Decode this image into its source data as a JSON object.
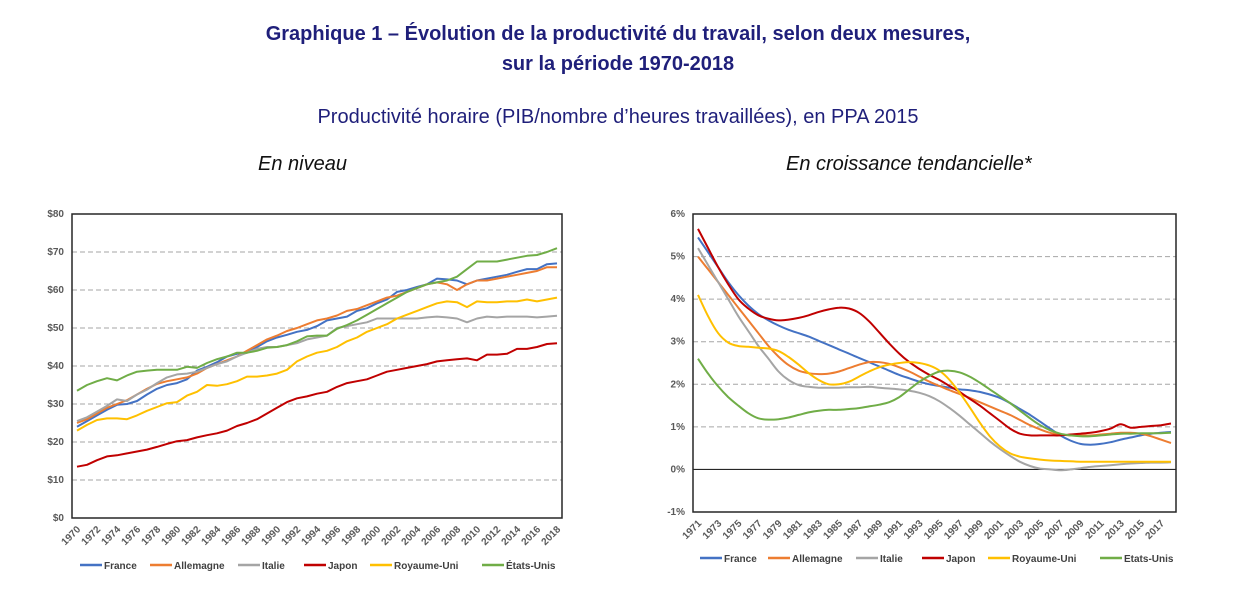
{
  "header": {
    "title_line1": "Graphique 1 – Évolution de la productivité du travail, selon deux mesures,",
    "title_line2": "sur la période 1970-2018",
    "subtitle": "Productivité horaire (PIB/nombre d’heures travaillées), en PPA 2015"
  },
  "colors": {
    "France": "#4472c4",
    "Allemagne": "#ed7d31",
    "Italie": "#a5a5a5",
    "Japon": "#c00000",
    "Royaume-Uni": "#ffc000",
    "États-Unis": "#70ad47"
  },
  "chart_data": [
    {
      "type": "line",
      "title": "En niveau",
      "xlabel": "",
      "ylabel": "",
      "ylim": [
        0,
        80
      ],
      "y_ticks": [
        "$0",
        "$10",
        "$20",
        "$30",
        "$40",
        "$50",
        "$60",
        "$70",
        "$80"
      ],
      "y_tick_values": [
        0,
        10,
        20,
        30,
        40,
        50,
        60,
        70,
        80
      ],
      "x_tick_labels": [
        "1970",
        "1972",
        "1974",
        "1976",
        "1978",
        "1980",
        "1982",
        "1984",
        "1986",
        "1988",
        "1990",
        "1992",
        "1994",
        "1996",
        "1998",
        "2000",
        "2002",
        "2004",
        "2006",
        "2008",
        "2010",
        "2012",
        "2014",
        "2016",
        "2018"
      ],
      "grid": "horizontal dashed",
      "legend": "bottom",
      "x": [
        1970,
        1971,
        1972,
        1973,
        1974,
        1975,
        1976,
        1977,
        1978,
        1979,
        1980,
        1981,
        1982,
        1983,
        1984,
        1985,
        1986,
        1987,
        1988,
        1989,
        1990,
        1991,
        1992,
        1993,
        1994,
        1995,
        1996,
        1997,
        1998,
        1999,
        2000,
        2001,
        2002,
        2003,
        2004,
        2005,
        2006,
        2007,
        2008,
        2009,
        2010,
        2011,
        2012,
        2013,
        2014,
        2015,
        2016,
        2017,
        2018
      ],
      "series": [
        {
          "name": "France",
          "values": [
            24,
            25.5,
            27,
            28.5,
            29.8,
            30,
            30.8,
            32.5,
            34,
            35,
            35.5,
            36.5,
            38.8,
            39.8,
            41,
            42.5,
            43.2,
            43.5,
            45,
            46.5,
            47.5,
            48.2,
            49,
            49.5,
            50.5,
            52,
            52.5,
            53,
            54.5,
            55.2,
            56.5,
            57.5,
            59.5,
            60,
            60.8,
            61.5,
            63,
            62.8,
            62.5,
            61.5,
            62.5,
            63,
            63.5,
            64,
            64.8,
            65.5,
            65.5,
            66.8,
            67
          ]
        },
        {
          "name": "Allemagne",
          "values": [
            25,
            26,
            27.5,
            29,
            30,
            31,
            32.5,
            34,
            35.3,
            36,
            36.5,
            37,
            38,
            39.5,
            40.5,
            41.5,
            42.5,
            44,
            45.5,
            47,
            48,
            49.2,
            50,
            51,
            52,
            52.5,
            53.3,
            54.5,
            55,
            56,
            57,
            58,
            58.5,
            59.5,
            60.5,
            61.5,
            62,
            61.5,
            60,
            61.5,
            62.5,
            62.5,
            63,
            63.5,
            64,
            64.5,
            65,
            66,
            66
          ]
        },
        {
          "name": "Italie",
          "values": [
            25.5,
            26.5,
            28,
            29.5,
            31.2,
            30.8,
            32.5,
            33.8,
            35.5,
            37,
            37.8,
            38,
            38.5,
            39.5,
            40.5,
            41.2,
            42.5,
            43.5,
            44.5,
            45,
            45,
            45.5,
            46,
            47,
            47.5,
            48,
            50,
            50.5,
            51,
            51.5,
            52.5,
            52.5,
            52.5,
            52.5,
            52.5,
            52.8,
            53,
            52.8,
            52.5,
            51.5,
            52.5,
            53,
            52.8,
            53,
            53,
            53,
            52.8,
            53,
            53.2
          ]
        },
        {
          "name": "Japon",
          "values": [
            13.5,
            14,
            15.2,
            16.2,
            16.5,
            17,
            17.5,
            18,
            18.7,
            19.5,
            20.2,
            20.5,
            21.2,
            21.8,
            22.3,
            23,
            24.2,
            25,
            26,
            27.5,
            29,
            30.5,
            31.5,
            32,
            32.7,
            33.2,
            34.5,
            35.5,
            36,
            36.5,
            37.5,
            38.5,
            39,
            39.5,
            40,
            40.5,
            41.2,
            41.5,
            41.8,
            42,
            41.5,
            43,
            43,
            43.2,
            44.5,
            44.5,
            45,
            45.8,
            46
          ]
        },
        {
          "name": "Royaume-Uni",
          "values": [
            23,
            24.5,
            25.8,
            26.2,
            26.2,
            26,
            27,
            28.2,
            29.2,
            30.2,
            30.5,
            32.2,
            33.2,
            35,
            34.8,
            35.2,
            36,
            37.2,
            37.2,
            37.5,
            38,
            39,
            41.2,
            42.5,
            43.5,
            44,
            45,
            46.5,
            47.5,
            49,
            50,
            51,
            52.5,
            53.5,
            54.5,
            55.5,
            56.5,
            57,
            56.8,
            55.5,
            57,
            56.8,
            56.8,
            57,
            57,
            57.5,
            57,
            57.5,
            58
          ]
        },
        {
          "name": "États-Unis",
          "values": [
            33.5,
            35,
            36,
            36.8,
            36.2,
            37.5,
            38.5,
            38.8,
            39,
            39,
            39,
            39.8,
            39.5,
            40.8,
            41.8,
            42.5,
            43.5,
            43.5,
            44,
            44.8,
            45,
            45.5,
            46.5,
            47.8,
            48,
            48,
            49.8,
            50.8,
            52,
            53.5,
            55,
            56.5,
            58,
            59.5,
            60.5,
            61.5,
            62,
            62.5,
            63.5,
            65.5,
            67.5,
            67.5,
            67.5,
            68,
            68.5,
            69,
            69.2,
            70,
            71
          ]
        }
      ]
    },
    {
      "type": "line",
      "title": "En croissance tendancielle*",
      "xlabel": "",
      "ylabel": "",
      "ylim": [
        -1,
        6
      ],
      "y_ticks": [
        "-1%",
        "0%",
        "1%",
        "2%",
        "3%",
        "4%",
        "5%",
        "6%"
      ],
      "y_tick_values": [
        -1,
        0,
        1,
        2,
        3,
        4,
        5,
        6
      ],
      "x_tick_labels": [
        "1971",
        "1973",
        "1975",
        "1977",
        "1979",
        "1981",
        "1983",
        "1985",
        "1987",
        "1989",
        "1991",
        "1993",
        "1995",
        "1997",
        "1999",
        "2001",
        "2003",
        "2005",
        "2007",
        "2009",
        "2011",
        "2013",
        "2015",
        "2017"
      ],
      "grid": "horizontal dashed",
      "legend": "bottom",
      "x": [
        1971,
        1972,
        1973,
        1974,
        1975,
        1976,
        1977,
        1978,
        1979,
        1980,
        1981,
        1982,
        1983,
        1984,
        1985,
        1986,
        1987,
        1988,
        1989,
        1990,
        1991,
        1992,
        1993,
        1994,
        1995,
        1996,
        1997,
        1998,
        1999,
        2000,
        2001,
        2002,
        2003,
        2004,
        2005,
        2006,
        2007,
        2008,
        2009,
        2010,
        2011,
        2012,
        2013,
        2014,
        2015,
        2016,
        2017,
        2018
      ],
      "series": [
        {
          "name": "France",
          "values": [
            5.45,
            5.1,
            4.75,
            4.4,
            4.1,
            3.85,
            3.65,
            3.5,
            3.38,
            3.28,
            3.2,
            3.12,
            3.02,
            2.92,
            2.82,
            2.72,
            2.62,
            2.52,
            2.42,
            2.32,
            2.22,
            2.14,
            2.06,
            2.0,
            1.96,
            1.92,
            1.88,
            1.86,
            1.82,
            1.76,
            1.68,
            1.56,
            1.42,
            1.28,
            1.12,
            0.96,
            0.8,
            0.68,
            0.6,
            0.58,
            0.6,
            0.64,
            0.7,
            0.75,
            0.8,
            0.84,
            0.86,
            0.88
          ]
        },
        {
          "name": "Allemagne",
          "values": [
            5.0,
            4.7,
            4.4,
            4.1,
            3.8,
            3.5,
            3.2,
            2.9,
            2.65,
            2.45,
            2.32,
            2.26,
            2.24,
            2.25,
            2.3,
            2.38,
            2.46,
            2.52,
            2.52,
            2.48,
            2.4,
            2.3,
            2.18,
            2.06,
            1.96,
            1.86,
            1.77,
            1.68,
            1.58,
            1.48,
            1.38,
            1.28,
            1.16,
            1.04,
            0.94,
            0.86,
            0.82,
            0.8,
            0.8,
            0.8,
            0.82,
            0.84,
            0.86,
            0.86,
            0.84,
            0.78,
            0.7,
            0.62
          ]
        },
        {
          "name": "Italie",
          "values": [
            5.2,
            4.8,
            4.4,
            4.0,
            3.6,
            3.25,
            2.9,
            2.6,
            2.3,
            2.1,
            1.98,
            1.94,
            1.92,
            1.92,
            1.92,
            1.93,
            1.93,
            1.94,
            1.92,
            1.9,
            1.88,
            1.85,
            1.8,
            1.72,
            1.6,
            1.44,
            1.26,
            1.06,
            0.86,
            0.66,
            0.48,
            0.32,
            0.18,
            0.08,
            0.02,
            0.0,
            -0.02,
            0.0,
            0.03,
            0.06,
            0.08,
            0.1,
            0.12,
            0.14,
            0.15,
            0.16,
            0.16,
            0.17
          ]
        },
        {
          "name": "Japon",
          "values": [
            5.65,
            5.2,
            4.75,
            4.35,
            4.0,
            3.78,
            3.62,
            3.54,
            3.5,
            3.52,
            3.56,
            3.62,
            3.7,
            3.76,
            3.8,
            3.78,
            3.68,
            3.48,
            3.22,
            2.96,
            2.72,
            2.52,
            2.36,
            2.22,
            2.1,
            1.96,
            1.82,
            1.66,
            1.5,
            1.32,
            1.14,
            0.96,
            0.84,
            0.8,
            0.8,
            0.8,
            0.8,
            0.82,
            0.84,
            0.86,
            0.9,
            0.96,
            1.06,
            0.98,
            1.0,
            1.02,
            1.04,
            1.08
          ]
        },
        {
          "name": "Royaume-Uni",
          "values": [
            4.1,
            3.6,
            3.2,
            2.98,
            2.9,
            2.88,
            2.86,
            2.84,
            2.78,
            2.64,
            2.46,
            2.26,
            2.1,
            2.0,
            2.0,
            2.06,
            2.18,
            2.3,
            2.4,
            2.46,
            2.5,
            2.52,
            2.5,
            2.44,
            2.32,
            2.1,
            1.8,
            1.46,
            1.1,
            0.78,
            0.54,
            0.38,
            0.3,
            0.26,
            0.23,
            0.21,
            0.2,
            0.19,
            0.18,
            0.18,
            0.18,
            0.18,
            0.18,
            0.18,
            0.18,
            0.18,
            0.18,
            0.18
          ]
        },
        {
          "name": "États-Unis",
          "values": [
            2.6,
            2.25,
            1.95,
            1.7,
            1.5,
            1.32,
            1.2,
            1.17,
            1.18,
            1.22,
            1.28,
            1.34,
            1.38,
            1.4,
            1.4,
            1.42,
            1.44,
            1.48,
            1.52,
            1.58,
            1.7,
            1.88,
            2.06,
            2.2,
            2.3,
            2.32,
            2.28,
            2.18,
            2.04,
            1.88,
            1.72,
            1.56,
            1.38,
            1.2,
            1.04,
            0.92,
            0.84,
            0.8,
            0.78,
            0.78,
            0.8,
            0.82,
            0.84,
            0.84,
            0.85,
            0.85,
            0.85,
            0.86
          ]
        }
      ]
    }
  ]
}
